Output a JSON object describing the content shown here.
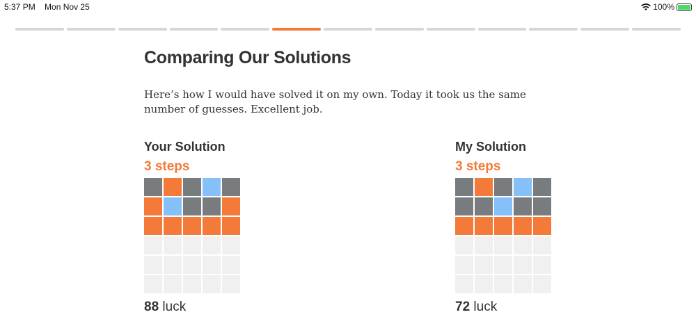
{
  "status_bar": {
    "time": "5:37 PM",
    "date": "Mon Nov 25",
    "battery": "100%",
    "wifi_icon": "wifi-icon",
    "battery_icon": "battery-charging-icon"
  },
  "progress": {
    "total": 13,
    "current_index": 5
  },
  "colors": {
    "gray": "#787c7e",
    "orange": "#f47a3a",
    "blue": "#85c0f9",
    "empty": "#f0f0f0"
  },
  "title": "Comparing Our Solutions",
  "intro": "Here’s how I would have solved it on my own. Today it took us the same number of guesses. Excellent job.",
  "solutions": [
    {
      "heading": "Your Solution",
      "steps": "3 steps",
      "luck_value": "88",
      "luck_label": "luck",
      "rows": [
        [
          "gray",
          "orange",
          "gray",
          "blue",
          "gray"
        ],
        [
          "orange",
          "blue",
          "gray",
          "gray",
          "orange"
        ],
        [
          "orange",
          "orange",
          "orange",
          "orange",
          "orange"
        ],
        [
          "empty",
          "empty",
          "empty",
          "empty",
          "empty"
        ],
        [
          "empty",
          "empty",
          "empty",
          "empty",
          "empty"
        ],
        [
          "empty",
          "empty",
          "empty",
          "empty",
          "empty"
        ]
      ]
    },
    {
      "heading": "My Solution",
      "steps": "3 steps",
      "luck_value": "72",
      "luck_label": "luck",
      "rows": [
        [
          "gray",
          "orange",
          "gray",
          "blue",
          "gray"
        ],
        [
          "gray",
          "gray",
          "blue",
          "gray",
          "gray"
        ],
        [
          "orange",
          "orange",
          "orange",
          "orange",
          "orange"
        ],
        [
          "empty",
          "empty",
          "empty",
          "empty",
          "empty"
        ],
        [
          "empty",
          "empty",
          "empty",
          "empty",
          "empty"
        ],
        [
          "empty",
          "empty",
          "empty",
          "empty",
          "empty"
        ]
      ]
    }
  ]
}
